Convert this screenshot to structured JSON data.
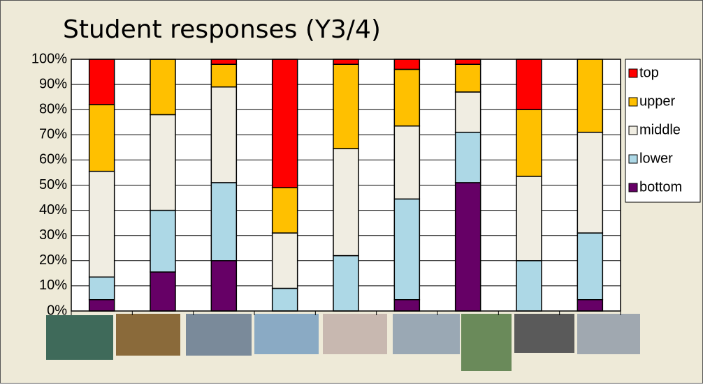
{
  "chart_data": {
    "type": "stacked-bar",
    "title": "Student responses (Y3/4)",
    "categories": [
      null,
      null,
      null,
      null,
      null,
      null,
      null,
      null,
      null
    ],
    "series": [
      {
        "name": "bottom",
        "color": "#660066",
        "values": [
          4.5,
          15.5,
          20,
          0,
          0,
          4.5,
          51,
          0,
          4.5
        ]
      },
      {
        "name": "lower",
        "color": "#add8e6",
        "values": [
          9,
          24.5,
          31,
          9,
          22,
          40,
          20,
          20,
          26.5
        ]
      },
      {
        "name": "middle",
        "color": "#f0ede2",
        "values": [
          42,
          38,
          38,
          22,
          42.5,
          29,
          16,
          33.5,
          40
        ]
      },
      {
        "name": "upper",
        "color": "#ffc000",
        "values": [
          26.5,
          22,
          9,
          18,
          33.5,
          22.5,
          11,
          26.5,
          29
        ]
      },
      {
        "name": "top",
        "color": "#ff0000",
        "values": [
          18,
          0,
          2,
          51,
          2,
          4,
          2,
          20,
          0
        ]
      }
    ],
    "ylim": [
      0,
      100
    ],
    "yticks": [
      {
        "value": 0,
        "label": "0%"
      },
      {
        "value": 10,
        "label": "10%"
      },
      {
        "value": 20,
        "label": "20%"
      },
      {
        "value": 30,
        "label": "30%"
      },
      {
        "value": 40,
        "label": "40%"
      },
      {
        "value": 50,
        "label": "50%"
      },
      {
        "value": 60,
        "label": "60%"
      },
      {
        "value": 70,
        "label": "70%"
      },
      {
        "value": 80,
        "label": "80%"
      },
      {
        "value": 90,
        "label": "90%"
      },
      {
        "value": 100,
        "label": "100%"
      }
    ],
    "grid": true,
    "legend": "right"
  }
}
